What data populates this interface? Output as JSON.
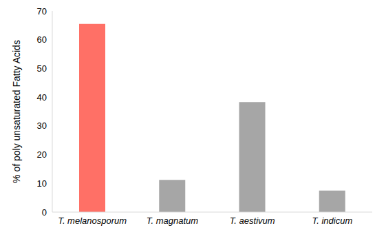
{
  "chart_data": {
    "type": "bar",
    "categories": [
      "T. melanosporum",
      "T. magnatum",
      "T. aestivum",
      "T. indicum"
    ],
    "values": [
      65.5,
      11.2,
      38.3,
      7.5
    ],
    "colors": [
      "#ff7066",
      "#a6a6a6",
      "#a6a6a6",
      "#a6a6a6"
    ],
    "y_label": "% of poly unsaturated Fatty Acids",
    "ylim": [
      0,
      70
    ],
    "yticks": [
      0,
      10,
      20,
      30,
      40,
      50,
      60,
      70
    ],
    "grid": false
  }
}
